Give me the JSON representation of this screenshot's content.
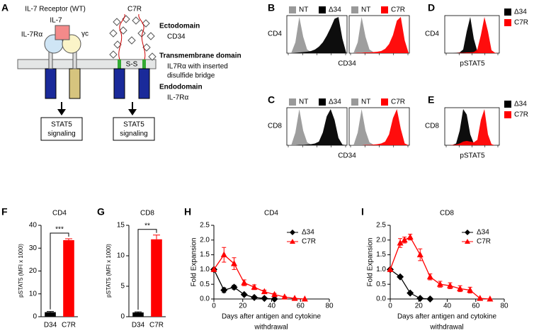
{
  "diagram": {
    "label": "A",
    "wt_title": "IL-7 Receptor (WT)",
    "c7r_title": "C7R",
    "ligand": "IL-7",
    "alpha_chain": "IL-7Rα",
    "gamma_chain": "γc",
    "disulfide": "S-S",
    "signaling": [
      [
        "STAT5",
        "signaling"
      ],
      [
        "STAT5",
        "signaling"
      ]
    ],
    "domains": [
      {
        "name": "Ectodomain",
        "detail": [
          "CD34"
        ]
      },
      {
        "name": "Transmembrane domain",
        "detail": [
          "IL7Rα with inserted",
          "disulfide bridge"
        ]
      },
      {
        "name": "Endodomain",
        "detail": [
          "IL-7Rα"
        ]
      }
    ]
  },
  "chart_data": [
    {
      "type": "area",
      "panel": "B",
      "ylabel": "CD4",
      "xlabel": "CD34",
      "ylim": [
        0,
        100
      ],
      "plots": [
        {
          "series": [
            {
              "name": "NT",
              "color": "#999999",
              "values": [
                0,
                2,
                30,
                100,
                45,
                10,
                3,
                1,
                0,
                0,
                0,
                0,
                0,
                0,
                0,
                0
              ]
            },
            {
              "name": "Δ34",
              "color": "#000000",
              "values": [
                0,
                0,
                1,
                2,
                3,
                4,
                6,
                10,
                18,
                30,
                48,
                70,
                95,
                100,
                40,
                0
              ]
            }
          ]
        },
        {
          "series": [
            {
              "name": "NT",
              "color": "#999999",
              "values": [
                0,
                2,
                30,
                100,
                45,
                10,
                3,
                1,
                0,
                0,
                0,
                0,
                0,
                0,
                0,
                0
              ]
            },
            {
              "name": "C7R",
              "color": "#ff0000",
              "values": [
                0,
                0,
                1,
                1,
                2,
                2,
                3,
                4,
                6,
                12,
                25,
                50,
                90,
                100,
                35,
                0
              ]
            }
          ]
        }
      ]
    },
    {
      "type": "area",
      "panel": "C",
      "ylabel": "CD8",
      "xlabel": "CD34",
      "ylim": [
        0,
        100
      ],
      "plots": [
        {
          "series": [
            {
              "name": "NT",
              "color": "#999999",
              "values": [
                0,
                2,
                35,
                100,
                40,
                8,
                2,
                1,
                0,
                0,
                0,
                0,
                0,
                0,
                0,
                0
              ]
            },
            {
              "name": "Δ34",
              "color": "#000000",
              "values": [
                0,
                0,
                0,
                1,
                1,
                2,
                3,
                5,
                10,
                35,
                80,
                100,
                70,
                20,
                2,
                0
              ]
            }
          ]
        },
        {
          "series": [
            {
              "name": "NT",
              "color": "#999999",
              "values": [
                0,
                2,
                35,
                100,
                40,
                8,
                2,
                1,
                0,
                0,
                0,
                0,
                0,
                0,
                0,
                0
              ]
            },
            {
              "name": "C7R",
              "color": "#ff0000",
              "values": [
                0,
                0,
                0,
                0,
                1,
                1,
                2,
                3,
                5,
                10,
                30,
                75,
                100,
                45,
                5,
                0
              ]
            }
          ]
        }
      ]
    },
    {
      "type": "area",
      "panel": "D",
      "ylabel": "CD4",
      "xlabel": "pSTAT5",
      "ylim": [
        0,
        100
      ],
      "plots": [
        {
          "series": [
            {
              "name": "Δ34",
              "color": "#000000",
              "values": [
                0,
                0,
                0,
                1,
                2,
                10,
                60,
                100,
                40,
                5,
                1,
                0,
                0,
                0,
                0,
                0
              ]
            },
            {
              "name": "C7R",
              "color": "#ff0000",
              "values": [
                0,
                0,
                0,
                0,
                1,
                1,
                2,
                2,
                3,
                10,
                50,
                100,
                60,
                8,
                1,
                0
              ]
            }
          ]
        }
      ]
    },
    {
      "type": "area",
      "panel": "E",
      "ylabel": "CD8",
      "xlabel": "pSTAT5",
      "ylim": [
        0,
        100
      ],
      "plots": [
        {
          "series": [
            {
              "name": "Δ34",
              "color": "#000000",
              "values": [
                0,
                0,
                1,
                5,
                40,
                100,
                85,
                30,
                5,
                1,
                0,
                0,
                0,
                0,
                0,
                0
              ]
            },
            {
              "name": "C7R",
              "color": "#ff0000",
              "values": [
                0,
                0,
                1,
                2,
                5,
                10,
                12,
                10,
                8,
                15,
                70,
                100,
                30,
                3,
                0,
                0
              ]
            }
          ]
        }
      ]
    },
    {
      "type": "bar",
      "panel": "F",
      "title": "CD4",
      "ylabel": "pSTAT5 (MFI x 1000)",
      "categories": [
        "D34",
        "C7R"
      ],
      "values": [
        2,
        33.5
      ],
      "errors": [
        0.3,
        0.6
      ],
      "colors": [
        "#000000",
        "#ff0000"
      ],
      "ylim": [
        0,
        40
      ],
      "yticks": [
        0,
        10,
        20,
        30,
        40
      ],
      "significance": "***"
    },
    {
      "type": "bar",
      "panel": "G",
      "title": "CD8",
      "ylabel": "pSTAT5 (MFI x 1000)",
      "categories": [
        "D34",
        "C7R"
      ],
      "values": [
        0.7,
        12.7
      ],
      "errors": [
        0.1,
        0.7
      ],
      "colors": [
        "#000000",
        "#ff0000"
      ],
      "ylim": [
        0,
        15
      ],
      "yticks": [
        0,
        5,
        10,
        15
      ],
      "significance": "**"
    },
    {
      "type": "line",
      "panel": "H",
      "title": "CD4",
      "ylabel": "Fold Expansion",
      "xlabel": [
        "Days after antigen and cytokine",
        "withdrawal"
      ],
      "xlim": [
        0,
        80
      ],
      "xticks": [
        0,
        20,
        40,
        60,
        80
      ],
      "ylim": [
        0,
        2.5
      ],
      "yticks": [
        {
          "value": 0,
          "label": "0.0"
        },
        0.5,
        {
          "value": 1,
          "label": "1.0"
        },
        1.5,
        {
          "value": 2,
          "label": "2.0"
        },
        2.5
      ],
      "legend": "upper right",
      "series": [
        {
          "name": "Δ34",
          "color": "#000000",
          "marker": "diamond",
          "x": [
            0,
            7,
            14,
            21,
            28,
            35,
            42
          ],
          "values": [
            1.0,
            0.3,
            0.4,
            0.15,
            0.05,
            0.02,
            0.0
          ],
          "errors": [
            0,
            0.08,
            0.07,
            0.03,
            0.02,
            0.01,
            0
          ]
        },
        {
          "name": "C7R",
          "color": "#ff0000",
          "marker": "triangle",
          "x": [
            0,
            7,
            14,
            21,
            28,
            35,
            42,
            49,
            56,
            63
          ],
          "values": [
            1.0,
            1.5,
            1.2,
            0.55,
            0.4,
            0.25,
            0.15,
            0.07,
            0.02,
            0.0
          ],
          "errors": [
            0,
            0.25,
            0.2,
            0.1,
            0.08,
            0.05,
            0.04,
            0.02,
            0.01,
            0
          ]
        }
      ]
    },
    {
      "type": "line",
      "panel": "I",
      "title": "CD8",
      "ylabel": "Fold Expansion",
      "xlabel": [
        "Days after antigen and cytokine",
        "withdrawal"
      ],
      "xlim": [
        0,
        80
      ],
      "xticks": [
        0,
        20,
        40,
        60,
        80
      ],
      "ylim": [
        0,
        2.5
      ],
      "yticks": [
        {
          "value": 0,
          "label": "0.0"
        },
        0.5,
        {
          "value": 1,
          "label": "1.0"
        },
        1.5,
        {
          "value": 2,
          "label": "2.0"
        },
        2.5
      ],
      "legend": "upper right",
      "series": [
        {
          "name": "Δ34",
          "color": "#000000",
          "marker": "diamond",
          "x": [
            0,
            7,
            14,
            21,
            28
          ],
          "values": [
            1.0,
            0.75,
            0.2,
            0.02,
            0.0
          ],
          "errors": [
            0,
            0.03,
            0.03,
            0.01,
            0
          ]
        },
        {
          "name": "C7R",
          "color": "#ff0000",
          "marker": "triangle",
          "x": [
            0,
            7,
            10,
            14,
            21,
            28,
            35,
            42,
            49,
            56,
            63,
            70
          ],
          "values": [
            1.0,
            1.9,
            2.0,
            2.1,
            1.5,
            0.75,
            0.5,
            0.45,
            0.35,
            0.3,
            0.02,
            0.0
          ],
          "errors": [
            0,
            0.15,
            0.1,
            0.1,
            0.2,
            0.1,
            0.1,
            0.1,
            0.1,
            0.1,
            0,
            0
          ]
        }
      ]
    }
  ]
}
